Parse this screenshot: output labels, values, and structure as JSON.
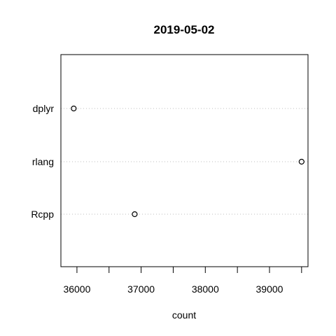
{
  "chart_data": {
    "type": "dotplot",
    "title": "2019-05-02",
    "xlabel": "count",
    "ylabel": "",
    "categories": [
      "dplyr",
      "rlang",
      "Rcpp"
    ],
    "values": [
      35950,
      39500,
      36900
    ],
    "xlim": [
      35750,
      39600
    ],
    "xticks": [
      36000,
      36500,
      37000,
      37500,
      38000,
      38500,
      39000,
      39500
    ],
    "xtick_labels": [
      "36000",
      "",
      "37000",
      "",
      "38000",
      "",
      "39000",
      ""
    ],
    "grid": "dotted horizontal guide lines",
    "colors": {
      "axis": "#000000",
      "guide": "#bebebe",
      "point": "#000000"
    }
  }
}
